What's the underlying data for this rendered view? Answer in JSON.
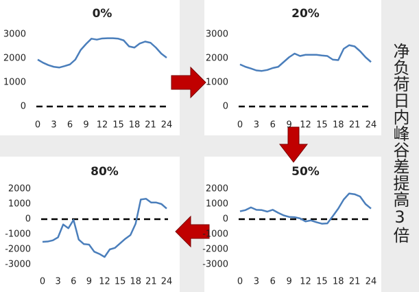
{
  "side_text": "净负荷日内峰谷差提高3倍",
  "chart_data": [
    {
      "type": "line",
      "title": "0%",
      "x": [
        0,
        1,
        2,
        3,
        4,
        5,
        6,
        7,
        8,
        9,
        10,
        11,
        12,
        13,
        14,
        15,
        16,
        17,
        18,
        19,
        20,
        21,
        22,
        23,
        24
      ],
      "series": [
        {
          "name": "0%",
          "color": "#4a7ebb",
          "values": [
            1950,
            1820,
            1720,
            1650,
            1620,
            1680,
            1750,
            1950,
            2350,
            2600,
            2820,
            2780,
            2830,
            2840,
            2840,
            2820,
            2750,
            2500,
            2450,
            2620,
            2700,
            2650,
            2450,
            2200,
            2030
          ]
        }
      ],
      "xlim": [
        0,
        24
      ],
      "xticks": [
        0,
        3,
        6,
        9,
        12,
        15,
        18,
        21,
        24
      ],
      "ylim": [
        0,
        3000
      ],
      "yticks": [
        0,
        1000,
        2000,
        3000
      ],
      "hline": 0
    },
    {
      "type": "line",
      "title": "20%",
      "x": [
        0,
        1,
        2,
        3,
        4,
        5,
        6,
        7,
        8,
        9,
        10,
        11,
        12,
        13,
        14,
        15,
        16,
        17,
        18,
        19,
        20,
        21,
        22,
        23,
        24
      ],
      "series": [
        {
          "name": "20%",
          "color": "#4a7ebb",
          "values": [
            1750,
            1650,
            1580,
            1500,
            1480,
            1520,
            1600,
            1650,
            1850,
            2050,
            2200,
            2100,
            2150,
            2150,
            2150,
            2120,
            2100,
            1950,
            1930,
            2400,
            2550,
            2500,
            2300,
            2050,
            1850
          ]
        }
      ],
      "xlim": [
        0,
        24
      ],
      "xticks": [
        0,
        3,
        6,
        9,
        12,
        15,
        18,
        21,
        24
      ],
      "ylim": [
        0,
        3000
      ],
      "yticks": [
        0,
        1000,
        2000,
        3000
      ],
      "hline": 0
    },
    {
      "type": "line",
      "title": "50%",
      "x": [
        0,
        1,
        2,
        3,
        4,
        5,
        6,
        7,
        8,
        9,
        10,
        11,
        12,
        13,
        14,
        15,
        16,
        17,
        18,
        19,
        20,
        21,
        22,
        23,
        24
      ],
      "series": [
        {
          "name": "50%",
          "color": "#4a7ebb",
          "values": [
            520,
            600,
            780,
            620,
            600,
            500,
            620,
            420,
            250,
            150,
            130,
            50,
            -150,
            -80,
            -200,
            -300,
            -280,
            200,
            700,
            1300,
            1700,
            1650,
            1500,
            1000,
            700
          ]
        }
      ],
      "xlim": [
        0,
        24
      ],
      "xticks": [
        0,
        3,
        6,
        9,
        12,
        15,
        18,
        21,
        24
      ],
      "ylim": [
        -3000,
        2000
      ],
      "yticks": [
        -3000,
        -2000,
        -1000,
        0,
        1000,
        2000
      ],
      "hline": 0
    },
    {
      "type": "line",
      "title": "80%",
      "x": [
        0,
        1,
        2,
        3,
        4,
        5,
        6,
        7,
        8,
        9,
        10,
        11,
        12,
        13,
        14,
        15,
        16,
        17,
        18,
        19,
        20,
        21,
        22,
        23,
        24
      ],
      "series": [
        {
          "name": "80%",
          "color": "#4a7ebb",
          "values": [
            -1500,
            -1480,
            -1400,
            -1200,
            -350,
            -600,
            -50,
            -1350,
            -1650,
            -1680,
            -2150,
            -2300,
            -2500,
            -2000,
            -1900,
            -1600,
            -1300,
            -1050,
            -300,
            1300,
            1350,
            1100,
            1100,
            1000,
            700
          ]
        }
      ],
      "xlim": [
        0,
        24
      ],
      "xticks": [
        0,
        3,
        6,
        9,
        12,
        15,
        18,
        21,
        24
      ],
      "ylim": [
        -3000,
        2000
      ],
      "yticks": [
        -3000,
        -2000,
        -1000,
        0,
        1000,
        2000
      ],
      "hline": 0
    }
  ]
}
